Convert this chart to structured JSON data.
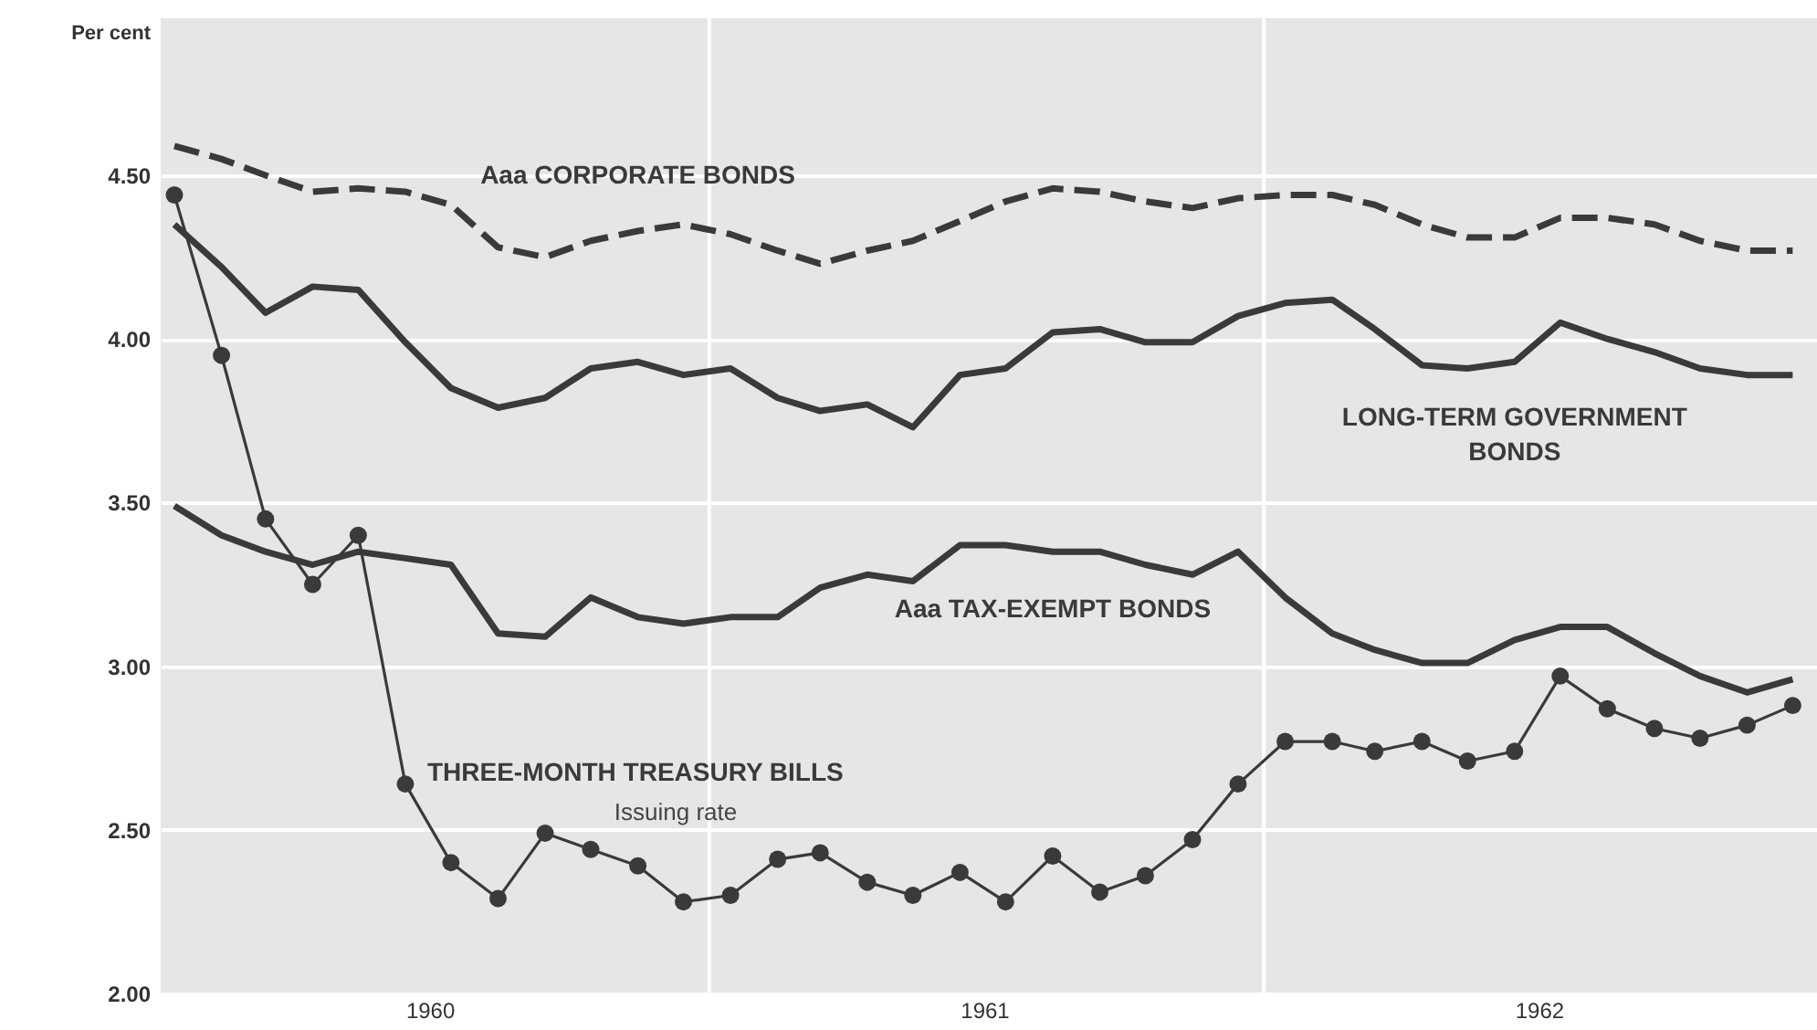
{
  "chart_data": {
    "type": "line",
    "ylabel": "Per cent",
    "x": [
      "1960-01-15",
      "1960-02-15",
      "1960-03-15",
      "1960-04-15",
      "1960-05-15",
      "1960-06-15",
      "1960-07-15",
      "1960-08-15",
      "1960-09-15",
      "1960-10-15",
      "1960-11-15",
      "1960-12-15",
      "1961-01-15",
      "1961-02-15",
      "1961-03-15",
      "1961-04-15",
      "1961-05-15",
      "1961-06-15",
      "1961-07-15",
      "1961-08-15",
      "1961-09-15",
      "1961-10-15",
      "1961-11-15",
      "1961-12-15",
      "1962-01-15",
      "1962-02-15",
      "1962-03-15",
      "1962-04-15",
      "1962-05-15",
      "1962-06-15",
      "1962-07-15",
      "1962-08-15",
      "1962-09-15",
      "1962-10-15",
      "1962-11-15",
      "1962-12-15"
    ],
    "series": [
      {
        "name": "Aaa CORPORATE BONDS",
        "color": "#3a3a3a",
        "line_style": "dashed",
        "marker": "none",
        "values": [
          4.59,
          4.55,
          4.5,
          4.45,
          4.46,
          4.45,
          4.41,
          4.28,
          4.25,
          4.3,
          4.33,
          4.35,
          4.32,
          4.27,
          4.23,
          4.27,
          4.3,
          4.36,
          4.42,
          4.46,
          4.45,
          4.42,
          4.4,
          4.43,
          4.44,
          4.44,
          4.41,
          4.35,
          4.31,
          4.31,
          4.37,
          4.37,
          4.35,
          4.3,
          4.27,
          4.27
        ]
      },
      {
        "name": "LONG-TERM GOVERNMENT BONDS",
        "color": "#3a3a3a",
        "line_style": "solid",
        "marker": "none",
        "values": [
          4.35,
          4.22,
          4.08,
          4.16,
          4.15,
          3.99,
          3.85,
          3.79,
          3.82,
          3.91,
          3.93,
          3.89,
          3.91,
          3.82,
          3.78,
          3.8,
          3.73,
          3.89,
          3.91,
          4.02,
          4.03,
          3.99,
          3.99,
          4.07,
          4.11,
          4.12,
          4.03,
          3.92,
          3.91,
          3.93,
          4.05,
          4.0,
          3.96,
          3.91,
          3.89,
          3.89
        ]
      },
      {
        "name": "Aaa TAX-EXEMPT BONDS",
        "color": "#3a3a3a",
        "line_style": "solid",
        "marker": "none",
        "values": [
          3.49,
          3.4,
          3.35,
          3.31,
          3.35,
          3.33,
          3.31,
          3.1,
          3.09,
          3.21,
          3.15,
          3.13,
          3.15,
          3.15,
          3.24,
          3.28,
          3.26,
          3.37,
          3.37,
          3.35,
          3.35,
          3.31,
          3.28,
          3.35,
          3.21,
          3.1,
          3.05,
          3.01,
          3.01,
          3.08,
          3.12,
          3.12,
          3.04,
          2.97,
          2.92,
          2.96
        ]
      },
      {
        "name": "THREE-MONTH TREASURY BILLS",
        "color": "#3a3a3a",
        "line_style": "solid",
        "marker": "circle",
        "values": [
          4.44,
          3.95,
          3.45,
          3.25,
          3.4,
          2.64,
          2.4,
          2.29,
          2.49,
          2.44,
          2.39,
          2.28,
          2.3,
          2.41,
          2.43,
          2.34,
          2.3,
          2.37,
          2.28,
          2.42,
          2.31,
          2.36,
          2.47,
          2.64,
          2.77,
          2.77,
          2.74,
          2.77,
          2.71,
          2.74,
          2.97,
          2.87,
          2.81,
          2.78,
          2.82,
          2.88
        ]
      }
    ],
    "annotations": [
      "Issuing rate"
    ],
    "xlim": [
      "1960-01-06",
      "1962-12-31"
    ],
    "xticks": [
      {
        "value": "1960-07-01",
        "label": "1960"
      },
      {
        "value": "1961-01-01",
        "label": null
      },
      {
        "value": "1961-07-01",
        "label": "1961"
      },
      {
        "value": "1962-01-01",
        "label": null
      },
      {
        "value": "1962-07-01",
        "label": "1962"
      }
    ],
    "ylim": [
      2.0,
      4.98
    ],
    "yticks": [
      {
        "value": 2.0,
        "label": "2.00"
      },
      {
        "value": 2.5,
        "label": "2.50"
      },
      {
        "value": 3.0,
        "label": "3.00"
      },
      {
        "value": 3.5,
        "label": "3.50"
      },
      {
        "value": 4.0,
        "label": "4.00"
      },
      {
        "value": 4.5,
        "label": "4.50"
      }
    ],
    "grid": true
  }
}
